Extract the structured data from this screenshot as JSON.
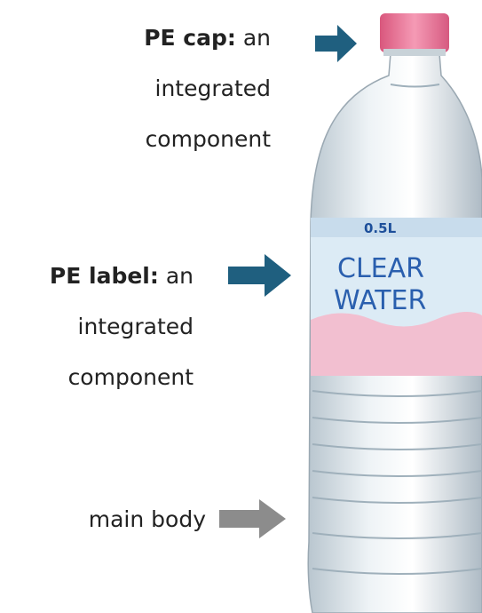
{
  "annotations": [
    {
      "bold": "PE cap:",
      "text": "an integrated component"
    },
    {
      "bold": "PE label:",
      "text": "an integrated component"
    },
    {
      "text": "main body"
    }
  ],
  "bottle": {
    "volume": "0.5L",
    "brand": [
      "CLEAR",
      "WATER"
    ]
  }
}
